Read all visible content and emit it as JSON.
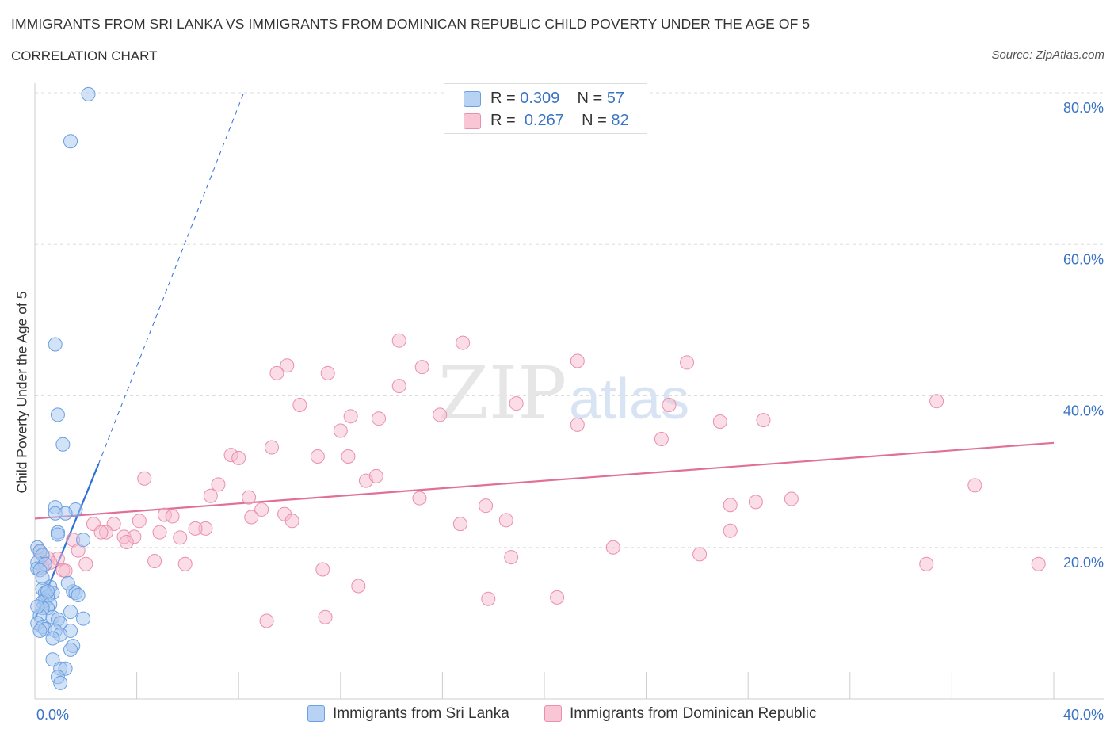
{
  "header": {
    "title": "IMMIGRANTS FROM SRI LANKA VS IMMIGRANTS FROM DOMINICAN REPUBLIC CHILD POVERTY UNDER THE AGE OF 5",
    "subtitle": "CORRELATION CHART",
    "source": "Source: ZipAtlas.com"
  },
  "legend": {
    "rows": [
      {
        "r_label": "R =",
        "r_value": "0.309",
        "n_label": "N =",
        "n_value": "57"
      },
      {
        "r_label": "R =",
        "r_value": "0.267",
        "n_label": "N =",
        "n_value": "82"
      }
    ]
  },
  "bottom_legend": {
    "series1": "Immigrants from Sri Lanka",
    "series2": "Immigrants from Dominican Republic"
  },
  "watermark": {
    "zip": "ZIP",
    "atlas": "atlas"
  },
  "colors": {
    "blue_fill": "#a8c8f0",
    "blue_stroke": "#6a9fe0",
    "blue_line": "#2f6fd6",
    "pink_fill": "#f6bccd",
    "pink_stroke": "#eb8fac",
    "pink_line": "#e0709a",
    "axis_text": "#3a72c4",
    "grid": "#dddddd"
  },
  "chart_data": {
    "type": "scatter",
    "title": "IMMIGRANTS FROM SRI LANKA VS IMMIGRANTS FROM DOMINICAN REPUBLIC CHILD POVERTY UNDER THE AGE OF 5",
    "xlabel": "",
    "ylabel": "Child Poverty Under the Age of 5",
    "xlim": [
      0,
      40
    ],
    "ylim": [
      0,
      80
    ],
    "x_tick_labels": [
      "0.0%",
      "40.0%"
    ],
    "y_ticks": [
      20,
      40,
      60,
      80
    ],
    "y_tick_labels": [
      "20.0%",
      "40.0%",
      "60.0%",
      "80.0%"
    ],
    "grid": true,
    "legend_position": "top-center",
    "series": [
      {
        "name": "Immigrants from Sri Lanka",
        "R": 0.309,
        "N": 57,
        "trend": {
          "x": [
            0,
            2.5
          ],
          "y": [
            10.5,
            31.0
          ]
        },
        "trend_extension": {
          "x": [
            2.5,
            8.2
          ],
          "y": [
            31.0,
            80.0
          ]
        },
        "points": [
          [
            2.1,
            79.8
          ],
          [
            1.4,
            73.6
          ],
          [
            0.8,
            46.8
          ],
          [
            0.9,
            37.5
          ],
          [
            1.1,
            33.6
          ],
          [
            0.8,
            25.3
          ],
          [
            1.6,
            25.0
          ],
          [
            0.8,
            24.5
          ],
          [
            1.2,
            24.5
          ],
          [
            0.9,
            22.0
          ],
          [
            0.9,
            21.7
          ],
          [
            1.9,
            21.0
          ],
          [
            0.1,
            20.0
          ],
          [
            0.2,
            19.5
          ],
          [
            0.3,
            19.0
          ],
          [
            0.1,
            18.0
          ],
          [
            0.4,
            17.8
          ],
          [
            0.1,
            17.2
          ],
          [
            0.2,
            17.0
          ],
          [
            0.3,
            16.0
          ],
          [
            0.6,
            14.8
          ],
          [
            0.3,
            14.5
          ],
          [
            1.5,
            14.2
          ],
          [
            0.7,
            14.0
          ],
          [
            0.4,
            14.0
          ],
          [
            1.6,
            14.0
          ],
          [
            0.5,
            13.5
          ],
          [
            0.4,
            13.0
          ],
          [
            0.3,
            12.8
          ],
          [
            0.6,
            12.5
          ],
          [
            0.5,
            12.0
          ],
          [
            0.3,
            12.0
          ],
          [
            1.4,
            11.5
          ],
          [
            0.2,
            11.0
          ],
          [
            0.7,
            10.8
          ],
          [
            0.9,
            10.5
          ],
          [
            1.9,
            10.6
          ],
          [
            0.1,
            10.0
          ],
          [
            1.0,
            10.0
          ],
          [
            0.3,
            9.5
          ],
          [
            0.4,
            9.2
          ],
          [
            0.2,
            9.0
          ],
          [
            0.8,
            9.0
          ],
          [
            1.4,
            9.0
          ],
          [
            1.0,
            8.5
          ],
          [
            0.7,
            8.0
          ],
          [
            1.5,
            7.0
          ],
          [
            1.4,
            6.5
          ],
          [
            0.7,
            5.2
          ],
          [
            1.0,
            4.0
          ],
          [
            1.2,
            4.0
          ],
          [
            0.9,
            2.9
          ],
          [
            1.0,
            2.1
          ],
          [
            0.1,
            12.2
          ],
          [
            0.5,
            14.2
          ],
          [
            1.3,
            15.3
          ],
          [
            1.7,
            13.7
          ]
        ]
      },
      {
        "name": "Immigrants from Dominican Republic",
        "R": 0.267,
        "N": 82,
        "trend": {
          "x": [
            0,
            40
          ],
          "y": [
            23.8,
            33.8
          ]
        },
        "points": [
          [
            14.3,
            47.3
          ],
          [
            16.8,
            47.0
          ],
          [
            21.3,
            44.6
          ],
          [
            25.6,
            44.4
          ],
          [
            9.9,
            44.0
          ],
          [
            15.2,
            43.8
          ],
          [
            9.5,
            43.0
          ],
          [
            11.5,
            43.0
          ],
          [
            14.3,
            41.3
          ],
          [
            18.9,
            39.0
          ],
          [
            35.4,
            39.3
          ],
          [
            10.4,
            38.8
          ],
          [
            24.9,
            38.8
          ],
          [
            12.4,
            37.3
          ],
          [
            13.5,
            37.0
          ],
          [
            15.9,
            37.5
          ],
          [
            26.9,
            36.6
          ],
          [
            28.6,
            36.8
          ],
          [
            21.3,
            36.2
          ],
          [
            12.0,
            35.4
          ],
          [
            24.6,
            34.3
          ],
          [
            9.3,
            33.2
          ],
          [
            7.7,
            32.2
          ],
          [
            12.3,
            32.0
          ],
          [
            11.1,
            32.0
          ],
          [
            8.0,
            31.8
          ],
          [
            4.3,
            29.1
          ],
          [
            13.0,
            28.8
          ],
          [
            13.4,
            29.4
          ],
          [
            36.9,
            28.2
          ],
          [
            7.2,
            28.3
          ],
          [
            6.9,
            26.8
          ],
          [
            8.4,
            26.6
          ],
          [
            15.1,
            26.5
          ],
          [
            29.7,
            26.4
          ],
          [
            28.3,
            26.0
          ],
          [
            17.7,
            25.5
          ],
          [
            27.3,
            25.6
          ],
          [
            8.9,
            25.0
          ],
          [
            9.8,
            24.4
          ],
          [
            5.1,
            24.3
          ],
          [
            5.4,
            24.1
          ],
          [
            8.5,
            24.0
          ],
          [
            18.5,
            23.6
          ],
          [
            10.1,
            23.5
          ],
          [
            4.1,
            23.5
          ],
          [
            16.7,
            23.1
          ],
          [
            2.3,
            23.1
          ],
          [
            3.1,
            23.1
          ],
          [
            6.7,
            22.5
          ],
          [
            6.3,
            22.5
          ],
          [
            4.9,
            22.0
          ],
          [
            27.3,
            22.2
          ],
          [
            2.8,
            22.0
          ],
          [
            2.6,
            22.0
          ],
          [
            3.5,
            21.4
          ],
          [
            3.9,
            21.4
          ],
          [
            3.6,
            20.7
          ],
          [
            5.7,
            21.3
          ],
          [
            1.5,
            21.0
          ],
          [
            22.7,
            20.0
          ],
          [
            1.7,
            19.6
          ],
          [
            26.1,
            19.1
          ],
          [
            18.7,
            18.7
          ],
          [
            0.9,
            18.5
          ],
          [
            0.5,
            18.6
          ],
          [
            0.6,
            18.0
          ],
          [
            4.7,
            18.2
          ],
          [
            2.0,
            17.8
          ],
          [
            5.9,
            17.8
          ],
          [
            35.0,
            17.8
          ],
          [
            39.4,
            17.8
          ],
          [
            11.3,
            17.1
          ],
          [
            1.1,
            17.0
          ],
          [
            1.2,
            16.9
          ],
          [
            12.7,
            14.9
          ],
          [
            20.5,
            13.4
          ],
          [
            17.8,
            13.2
          ],
          [
            11.4,
            10.8
          ],
          [
            9.1,
            10.3
          ],
          [
            0.2,
            19.4
          ],
          [
            0.3,
            17.3
          ]
        ]
      }
    ]
  }
}
